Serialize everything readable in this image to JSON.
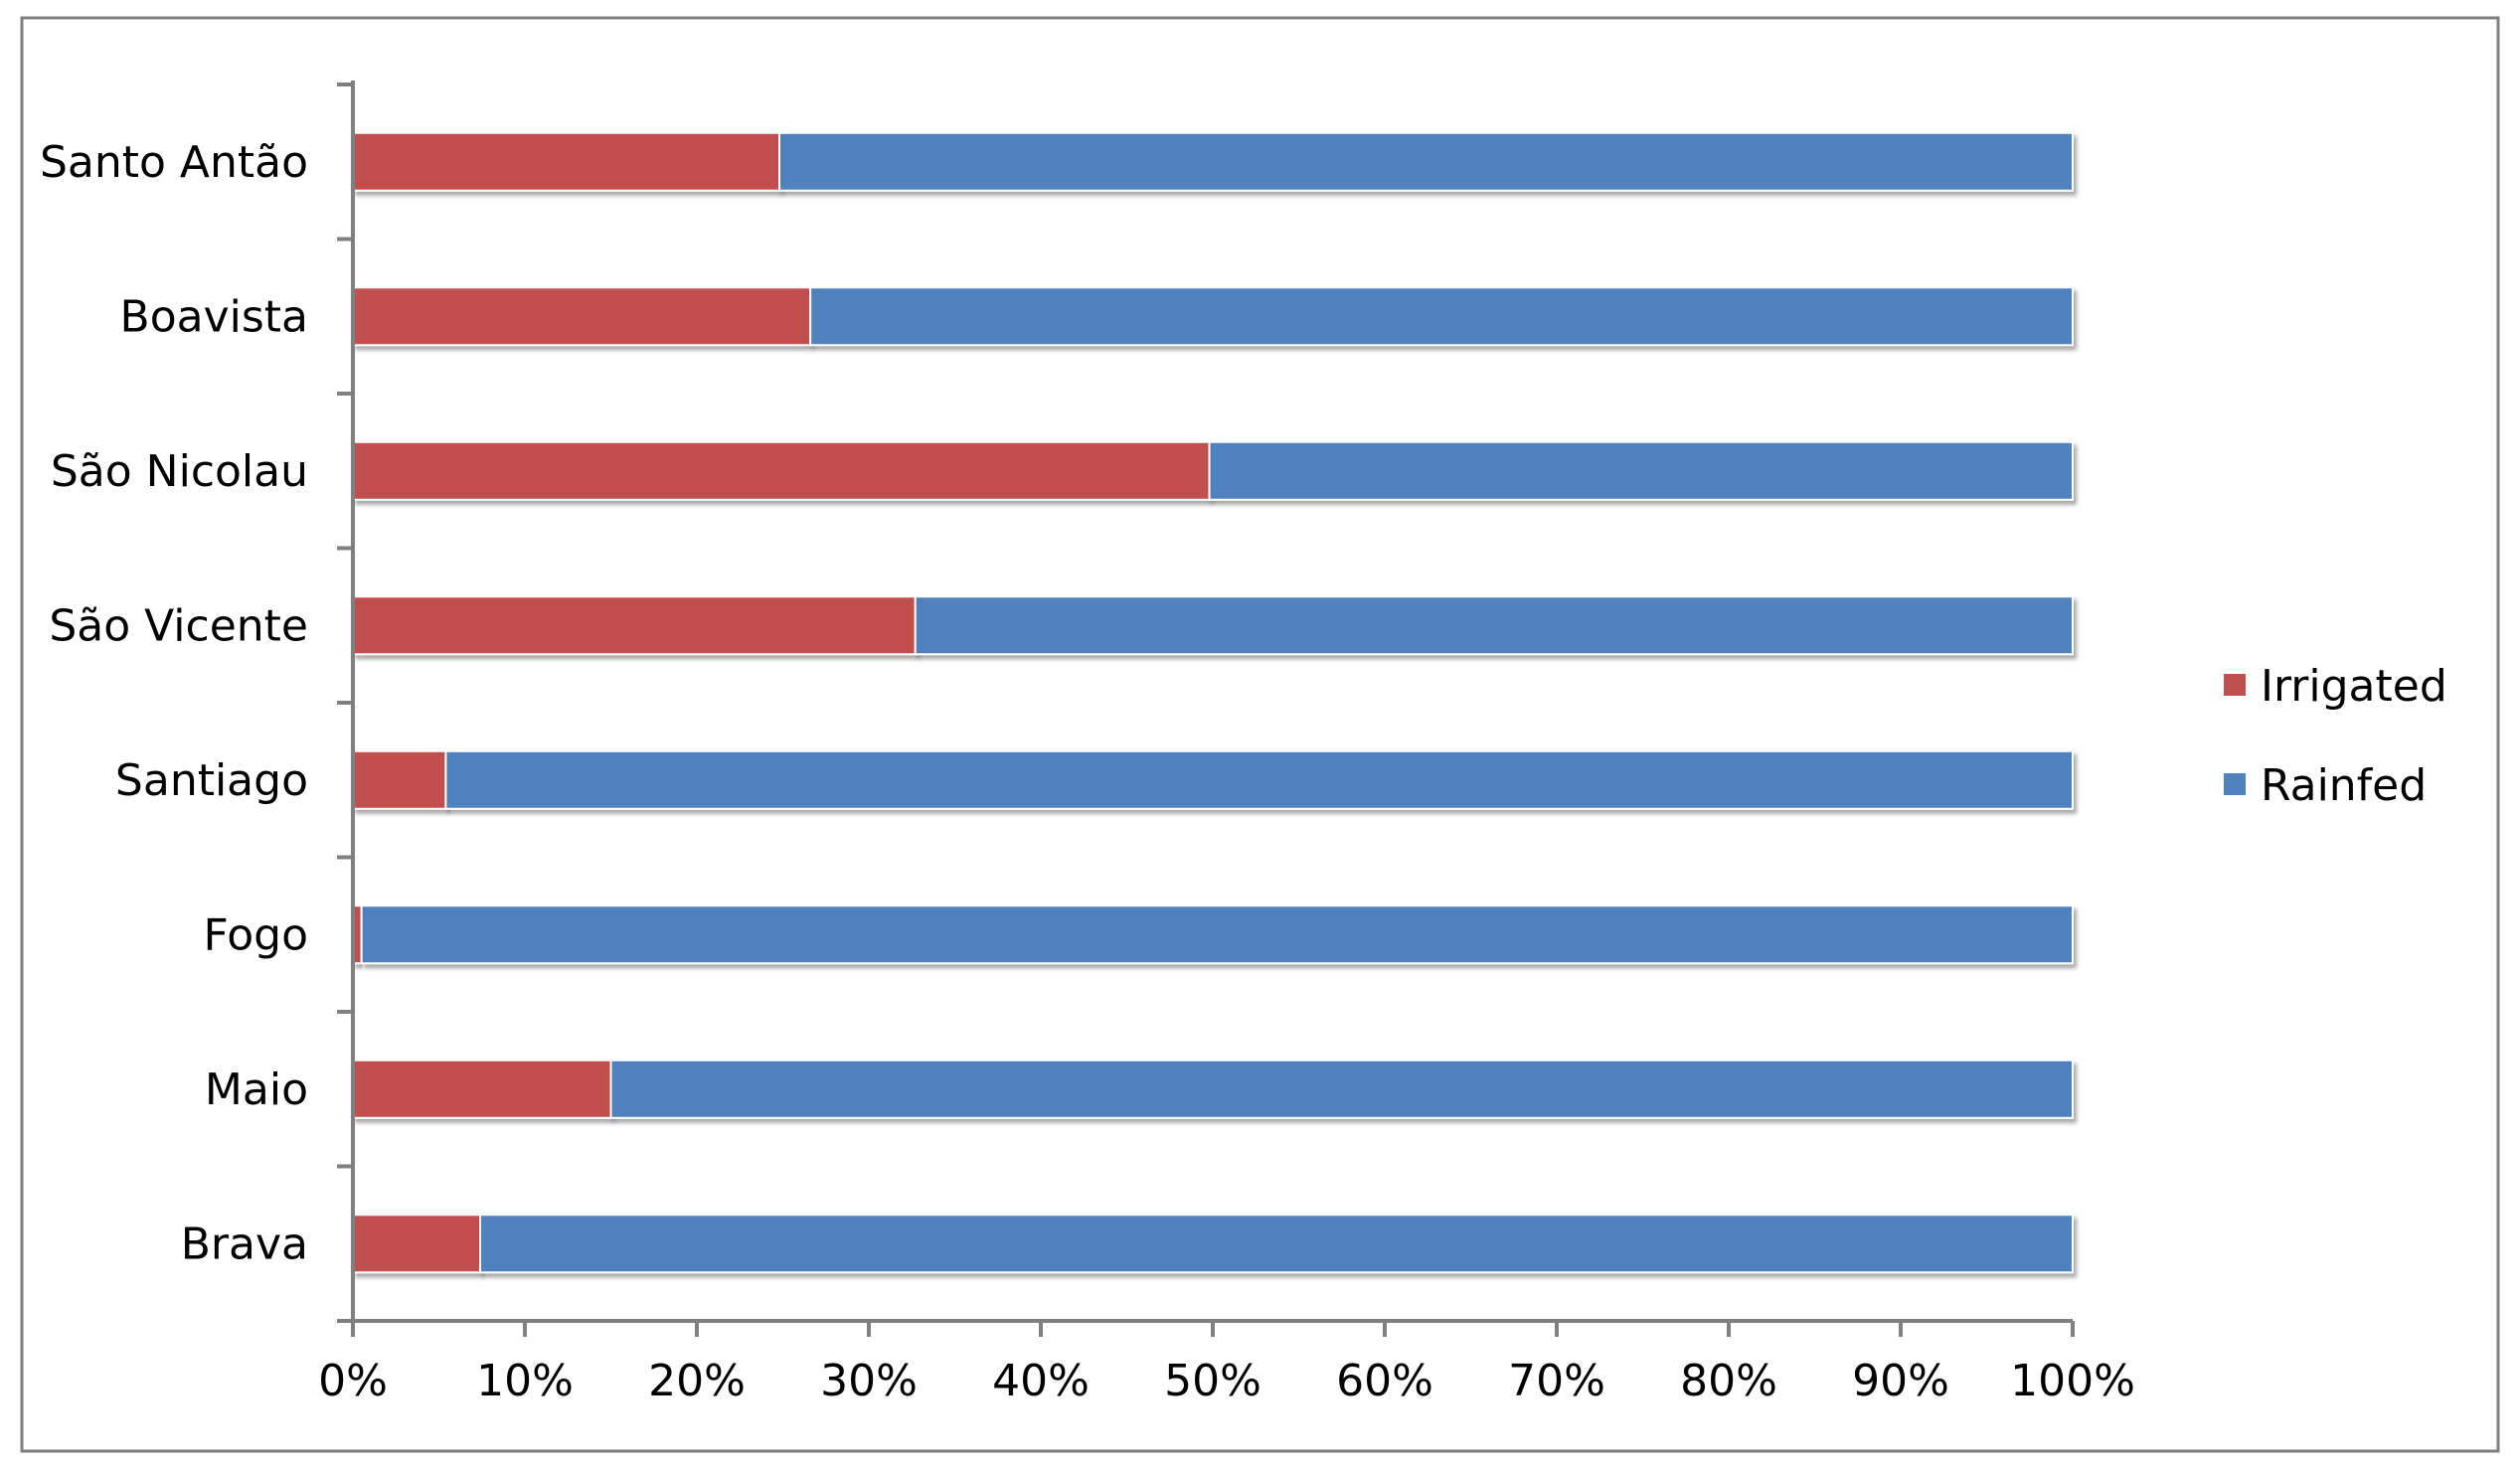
{
  "chart_data": {
    "type": "bar",
    "orientation": "horizontal",
    "stacked": "percent",
    "title": "",
    "xlabel": "",
    "ylabel": "",
    "categories": [
      "Santo Antão",
      "Boavista",
      "São Nicolau",
      "São Vicente",
      "Santiago",
      "Fogo",
      "Maio",
      "Brava"
    ],
    "series": [
      {
        "name": "Irrigated",
        "color": "#c0504d",
        "values": [
          24.8,
          26.6,
          49.8,
          32.7,
          5.4,
          0.5,
          15.0,
          7.4
        ]
      },
      {
        "name": "Rainfed",
        "color": "#4f81bd",
        "values": [
          75.2,
          73.4,
          50.2,
          67.3,
          94.6,
          99.5,
          85.0,
          92.6
        ]
      }
    ],
    "xlim": [
      0,
      100
    ],
    "xticks": [
      "0%",
      "10%",
      "20%",
      "30%",
      "40%",
      "50%",
      "60%",
      "70%",
      "80%",
      "90%",
      "100%"
    ],
    "grid": false,
    "legend_position": "right"
  }
}
